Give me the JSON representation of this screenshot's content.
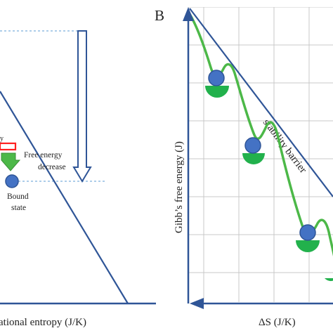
{
  "panel_a": {
    "label_free_energy": "Free energy",
    "label_decrease": "decrease",
    "label_bound": "Bound",
    "label_state": "state",
    "label_partial_red": "y",
    "xlabel": "ational entropy (J/K)"
  },
  "panel_b": {
    "letter": "B",
    "ylabel": "Gibb’s free energy (J)",
    "xlabel": "ΔS (J/K)",
    "barrier_label": "stability barrier"
  },
  "colors": {
    "axis_blue": "#2f5597",
    "ball_blue": "#4472c4",
    "path_green": "#4cb848",
    "cup_green": "#22b14c",
    "grid": "#c8c8c8",
    "dashed": "#5b9bd5",
    "red": "#ff2020"
  }
}
